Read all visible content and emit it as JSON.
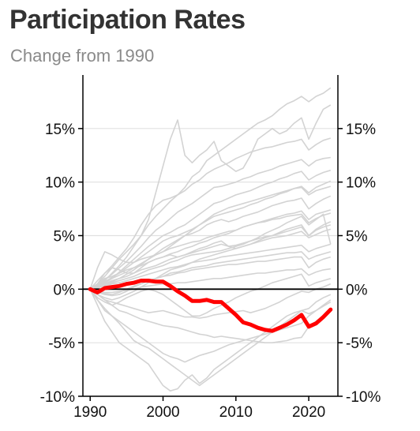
{
  "title": "Participation Rates",
  "subtitle": "Change from 1990",
  "colors": {
    "highlight": "#ff0000",
    "background_lines": "#d3d3d3",
    "zero_line": "#000000",
    "grid": "#e0e0e0",
    "title": "#333333",
    "subtitle": "#8a8a8a"
  },
  "chart_data": {
    "type": "line",
    "title": "Participation Rates",
    "subtitle": "Change from 1990",
    "xlabel": "",
    "ylabel": "",
    "xlim": [
      1989,
      2024
    ],
    "ylim": [
      -10,
      20
    ],
    "x_ticks": [
      1990,
      2000,
      2010,
      2020
    ],
    "x_tick_labels": [
      "1990",
      "2000",
      "2010",
      "2020"
    ],
    "y_ticks": [
      -10,
      -5,
      0,
      5,
      10,
      15
    ],
    "y_tick_labels": [
      "-10%",
      "-5%",
      "0%",
      "5%",
      "10%",
      "15%"
    ],
    "y_axis_both_sides": true,
    "grid": "horizontal",
    "x": [
      1990,
      1991,
      1992,
      1993,
      1994,
      1995,
      1996,
      1997,
      1998,
      1999,
      2000,
      2001,
      2002,
      2003,
      2004,
      2005,
      2006,
      2007,
      2008,
      2009,
      2010,
      2011,
      2012,
      2013,
      2014,
      2015,
      2016,
      2017,
      2018,
      2019,
      2020,
      2021,
      2022,
      2023
    ],
    "highlight": {
      "values": [
        0,
        -0.3,
        0.1,
        0.2,
        0.3,
        0.5,
        0.6,
        0.8,
        0.8,
        0.7,
        0.7,
        0.3,
        -0.2,
        -0.6,
        -1.1,
        -1.1,
        -1.0,
        -1.2,
        -1.2,
        -1.8,
        -2.4,
        -3.1,
        -3.3,
        -3.6,
        -3.8,
        -3.9,
        -3.6,
        -3.3,
        -2.9,
        -2.4,
        -3.5,
        -3.2,
        -2.6,
        -1.9
      ]
    },
    "background_series": [
      {
        "values": [
          0,
          0.8,
          1.5,
          2.2,
          3.0,
          3.8,
          4.8,
          6.0,
          7.0,
          7.8,
          8.3,
          8.5,
          8.8,
          9.5,
          10.5,
          11.0,
          12.0,
          12.5,
          13.0,
          13.5,
          14.0,
          14.5,
          15.0,
          15.5,
          15.8,
          16.2,
          16.8,
          17.3,
          17.6,
          18.0,
          17.5,
          18.0,
          18.3,
          18.8
        ]
      },
      {
        "values": [
          0,
          0.5,
          1.2,
          2.0,
          2.8,
          3.5,
          4.2,
          5.0,
          6.5,
          9.0,
          11.5,
          14.0,
          15.8,
          12.5,
          11.8,
          12.5,
          13.0,
          13.8,
          12.0,
          11.5,
          11.0,
          11.3,
          12.5,
          14.0,
          14.5,
          15.0,
          14.5,
          14.8,
          15.5,
          16.0,
          14.0,
          15.5,
          16.8,
          17.2
        ]
      },
      {
        "values": [
          0,
          0.3,
          0.8,
          1.5,
          2.2,
          3.0,
          4.0,
          5.0,
          6.0,
          6.8,
          7.5,
          8.2,
          8.8,
          9.2,
          9.8,
          10.2,
          10.8,
          11.2,
          11.5,
          11.8,
          12.2,
          12.5,
          12.8,
          13.0,
          13.2,
          13.3,
          13.5,
          13.7,
          13.8,
          14.0,
          13.0,
          13.5,
          13.9,
          14.1
        ]
      },
      {
        "values": [
          0,
          0.4,
          0.9,
          1.4,
          2.0,
          2.6,
          3.3,
          4.0,
          4.8,
          5.5,
          6.0,
          6.6,
          7.2,
          7.6,
          8.0,
          8.5,
          9.0,
          9.5,
          9.6,
          9.8,
          10.0,
          10.3,
          10.5,
          10.8,
          11.0,
          11.2,
          11.5,
          11.7,
          11.9,
          12.1,
          11.5,
          12.0,
          12.2,
          12.3
        ]
      },
      {
        "values": [
          0,
          0.2,
          0.6,
          1.0,
          1.6,
          2.2,
          2.8,
          3.4,
          4.0,
          4.5,
          5.0,
          5.3,
          5.7,
          6.0,
          6.5,
          7.0,
          7.5,
          8.0,
          8.2,
          8.5,
          8.8,
          9.0,
          9.2,
          9.5,
          9.8,
          10.0,
          10.3,
          10.5,
          10.8,
          11.0,
          10.2,
          10.6,
          10.9,
          11.1
        ]
      },
      {
        "values": [
          0,
          0.3,
          0.7,
          1.1,
          1.5,
          2.0,
          2.5,
          3.0,
          3.5,
          4.0,
          4.5,
          4.8,
          5.0,
          5.3,
          5.6,
          6.0,
          6.4,
          6.8,
          7.0,
          7.2,
          7.4,
          7.6,
          7.9,
          8.1,
          8.4,
          8.6,
          8.9,
          9.1,
          9.4,
          9.6,
          9.0,
          9.5,
          9.8,
          10.1
        ]
      },
      {
        "values": [
          0,
          0.2,
          0.4,
          0.7,
          1.0,
          1.4,
          1.8,
          2.3,
          2.8,
          3.3,
          3.8,
          4.2,
          4.6,
          5.0,
          5.5,
          6.0,
          6.5,
          7.0,
          7.3,
          7.6,
          7.8,
          8.0,
          8.2,
          8.4,
          8.6,
          8.8,
          9.0,
          9.2,
          9.4,
          9.5,
          8.8,
          9.2,
          9.4,
          9.6
        ]
      },
      {
        "values": [
          0,
          0.5,
          1.0,
          1.2,
          1.5,
          1.8,
          2.0,
          2.4,
          2.8,
          3.2,
          3.5,
          4.0,
          4.5,
          5.0,
          5.2,
          5.5,
          6.0,
          6.3,
          6.5,
          6.3,
          6.5,
          6.8,
          7.0,
          7.2,
          7.5,
          7.8,
          8.0,
          8.2,
          8.3,
          8.5,
          7.5,
          8.0,
          8.4,
          8.7
        ]
      },
      {
        "values": [
          0,
          0.3,
          0.6,
          1.0,
          1.3,
          1.6,
          2.0,
          2.2,
          2.5,
          2.8,
          3.0,
          3.3,
          3.5,
          3.8,
          4.0,
          4.3,
          4.5,
          4.8,
          5.0,
          5.2,
          5.5,
          5.8,
          6.0,
          6.2,
          6.4,
          6.6,
          6.8,
          7.0,
          7.1,
          7.3,
          6.5,
          7.0,
          7.2,
          7.4
        ]
      },
      {
        "values": [
          0,
          2.0,
          3.5,
          3.2,
          2.8,
          2.5,
          2.5,
          2.8,
          3.0,
          3.2,
          3.5,
          3.8,
          4.0,
          4.2,
          4.4,
          4.5,
          4.8,
          5.0,
          5.2,
          5.4,
          5.5,
          5.8,
          6.0,
          6.2,
          6.3,
          6.5,
          6.6,
          6.8,
          6.9,
          7.0,
          6.2,
          6.6,
          6.9,
          7.1
        ]
      },
      {
        "values": [
          0,
          0.5,
          1.5,
          2.0,
          1.8,
          1.5,
          1.5,
          2.0,
          2.5,
          2.8,
          3.0,
          3.2,
          3.0,
          3.2,
          3.5,
          3.8,
          4.0,
          4.3,
          4.5,
          4.0,
          3.8,
          4.0,
          4.2,
          4.5,
          4.8,
          5.0,
          5.3,
          5.6,
          5.8,
          6.0,
          5.0,
          5.6,
          6.0,
          6.3
        ]
      },
      {
        "values": [
          0,
          0.2,
          0.5,
          0.8,
          1.0,
          1.2,
          1.5,
          1.8,
          2.0,
          2.2,
          2.5,
          2.8,
          3.0,
          3.2,
          3.4,
          3.6,
          3.8,
          4.0,
          4.2,
          4.0,
          4.1,
          4.3,
          4.5,
          4.7,
          4.9,
          5.0,
          5.2,
          5.4,
          5.6,
          5.8,
          5.0,
          5.5,
          5.8,
          6.0
        ]
      },
      {
        "values": [
          0,
          0.2,
          0.4,
          0.6,
          0.8,
          1.0,
          1.2,
          1.5,
          1.8,
          2.0,
          2.2,
          2.5,
          2.7,
          3.0,
          3.2,
          3.3,
          3.4,
          3.5,
          3.6,
          3.8,
          4.0,
          4.2,
          4.5,
          4.8,
          5.2,
          5.5,
          5.8,
          6.2,
          6.5,
          6.8,
          6.0,
          6.5,
          7.0,
          4.2
        ]
      },
      {
        "values": [
          0,
          -0.5,
          -0.8,
          -1.0,
          -0.8,
          -0.5,
          -0.2,
          0.2,
          0.6,
          1.0,
          1.4,
          1.8,
          2.0,
          2.2,
          2.5,
          2.8,
          3.0,
          3.2,
          3.4,
          3.6,
          3.8,
          4.0,
          4.2,
          4.4,
          4.6,
          4.8,
          4.9,
          5.0,
          5.2,
          5.4,
          4.8,
          5.1,
          5.4,
          5.6
        ]
      },
      {
        "values": [
          0,
          0.1,
          0.3,
          0.5,
          0.6,
          0.8,
          1.0,
          1.2,
          1.4,
          1.6,
          1.8,
          2.0,
          2.1,
          2.3,
          2.5,
          2.6,
          2.7,
          2.8,
          3.0,
          3.1,
          3.2,
          3.3,
          3.4,
          3.5,
          3.6,
          3.7,
          3.8,
          3.9,
          4.0,
          4.1,
          3.5,
          3.8,
          4.0,
          4.2
        ]
      },
      {
        "values": [
          0,
          -0.3,
          -0.4,
          -0.5,
          -0.3,
          0.0,
          0.3,
          0.5,
          0.8,
          1.0,
          1.2,
          1.5,
          1.6,
          1.8,
          2.0,
          2.1,
          2.2,
          2.4,
          2.5,
          2.6,
          2.7,
          2.8,
          2.9,
          3.0,
          3.1,
          3.2,
          3.3,
          3.4,
          3.4,
          3.5,
          2.8,
          3.1,
          3.3,
          3.5
        ]
      },
      {
        "values": [
          0,
          -0.3,
          -0.5,
          -0.6,
          -0.5,
          -0.2,
          0.2,
          0.5,
          0.8,
          1.0,
          1.2,
          1.3,
          1.5,
          1.6,
          1.8,
          1.9,
          2.0,
          2.1,
          2.2,
          2.3,
          2.3,
          2.4,
          2.5,
          2.6,
          2.6,
          2.7,
          2.8,
          2.9,
          3.0,
          3.0,
          2.0,
          2.5,
          2.8,
          3.0
        ]
      },
      {
        "values": [
          0,
          -0.2,
          -0.3,
          -0.3,
          -0.2,
          -0.1,
          0.0,
          0.2,
          0.3,
          0.4,
          0.5,
          0.5,
          0.6,
          0.6,
          0.7,
          0.8,
          0.9,
          1.0,
          1.0,
          1.1,
          1.2,
          1.3,
          1.4,
          1.5,
          1.5,
          1.6,
          1.7,
          1.8,
          1.8,
          1.9,
          1.3,
          1.6,
          1.8,
          1.9
        ]
      },
      {
        "values": [
          0,
          -0.8,
          -1.2,
          -1.5,
          -1.2,
          -0.8,
          -0.5,
          -0.2,
          0.0,
          -0.2,
          -0.5,
          -1.0,
          -1.5,
          -2.0,
          -2.5,
          -2.5,
          -2.2,
          -1.8,
          -1.5,
          -1.2,
          -0.8,
          -0.5,
          -0.2,
          0.0,
          0.3,
          0.6,
          0.8,
          1.0,
          1.2,
          1.4,
          0.3,
          0.6,
          0.8,
          1.0
        ]
      },
      {
        "values": [
          0,
          -0.5,
          -1.0,
          -1.2,
          -1.4,
          -1.6,
          -1.8,
          -2.0,
          -2.2,
          -2.1,
          -2.0,
          -2.2,
          -2.4,
          -2.6,
          -2.6,
          -2.7,
          -2.6,
          -2.4,
          -2.3,
          -2.2,
          -2.1,
          -2.0,
          -2.2,
          -2.0,
          -1.8,
          -1.5,
          -1.2,
          -0.8,
          -0.5,
          -0.2,
          -0.3,
          0.0,
          0.2,
          0.5
        ]
      },
      {
        "values": [
          0,
          -0.5,
          -1.0,
          -1.5,
          -2.0,
          -2.2,
          -2.5,
          -2.8,
          -3.0,
          -3.2,
          -3.4,
          -3.5,
          -3.6,
          -3.8,
          -4.0,
          -4.2,
          -4.3,
          -4.5,
          -4.4,
          -4.5,
          -4.6,
          -4.7,
          -4.8,
          -4.9,
          -5.0,
          -5.0,
          -4.9,
          -4.8,
          -4.6,
          -4.5,
          -3.5,
          -3.0,
          -2.5,
          -2.0
        ]
      },
      {
        "values": [
          0,
          -1.0,
          -2.0,
          -2.5,
          -3.0,
          -3.5,
          -4.0,
          -4.5,
          -5.0,
          -5.5,
          -6.0,
          -6.3,
          -6.5,
          -6.8,
          -6.5,
          -6.2,
          -6.0,
          -5.8,
          -5.5,
          -5.2,
          -5.0,
          -4.8,
          -4.6,
          -4.4,
          -4.2,
          -4.0,
          -3.8,
          -3.6,
          -3.4,
          -3.2,
          -2.5,
          -2.0,
          -1.5,
          -1.0
        ]
      },
      {
        "values": [
          0,
          -1.0,
          -1.8,
          -2.5,
          -3.2,
          -4.0,
          -4.8,
          -5.2,
          -5.5,
          -6.0,
          -6.5,
          -7.0,
          -7.5,
          -8.0,
          -8.5,
          -9.0,
          -8.5,
          -8.0,
          -7.5,
          -7.0,
          -6.5,
          -6.0,
          -5.5,
          -5.0,
          -4.5,
          -4.0,
          -3.5,
          -3.0,
          -2.5,
          -2.0,
          -1.8,
          -1.2,
          -0.8,
          -0.5
        ]
      },
      {
        "values": [
          0,
          -1.5,
          -3.0,
          -4.0,
          -5.0,
          -5.5,
          -6.0,
          -6.5,
          -7.0,
          -8.0,
          -9.0,
          -9.5,
          -9.3,
          -8.5,
          -8.0,
          -8.8,
          -8.3,
          -7.5,
          -7.0,
          -6.5,
          -6.0,
          -5.5,
          -5.0,
          -4.5,
          -4.0,
          -3.5,
          -3.0,
          -2.5,
          -2.2,
          -2.0,
          -2.3,
          -2.0,
          -1.6,
          -1.2
        ]
      }
    ]
  }
}
